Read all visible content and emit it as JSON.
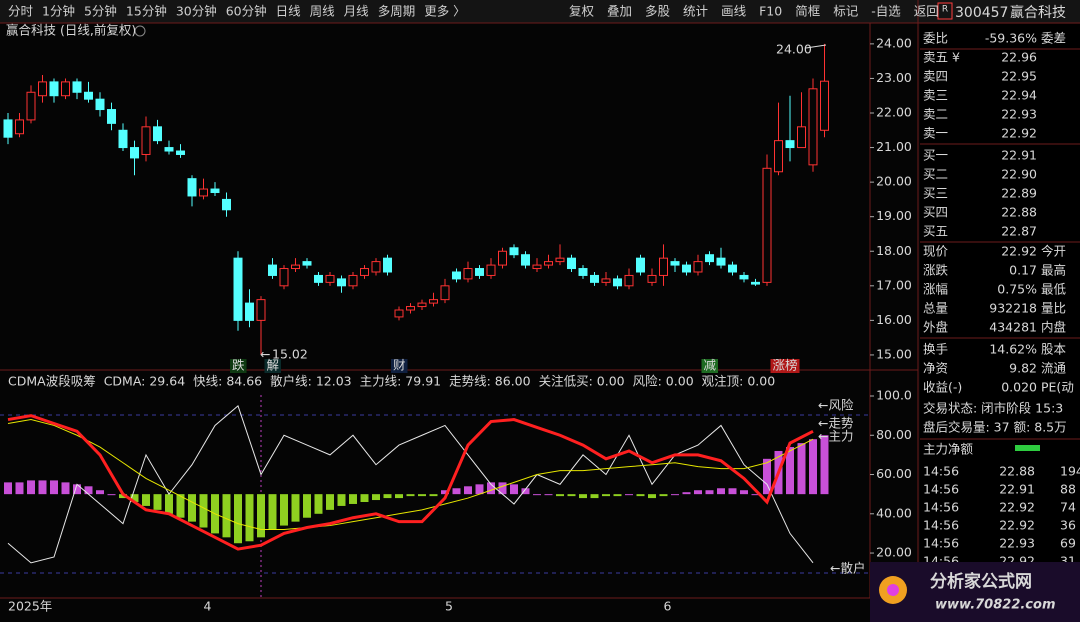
{
  "toolbar": {
    "left": [
      {
        "text": "分时"
      },
      {
        "text": "1分钟"
      },
      {
        "text": "5分钟"
      },
      {
        "text": "15分钟"
      },
      {
        "text": "30分钟"
      },
      {
        "text": "60分钟"
      },
      {
        "text": "日线",
        "active": true
      },
      {
        "text": "周线"
      },
      {
        "text": "月线"
      },
      {
        "text": "多周期"
      },
      {
        "text": "更多 〉"
      }
    ],
    "right": [
      {
        "text": "复权"
      },
      {
        "text": "叠加"
      },
      {
        "text": "多股"
      },
      {
        "text": "统计"
      },
      {
        "text": "画线"
      },
      {
        "text": "F10"
      },
      {
        "text": "简框"
      },
      {
        "text": "标记"
      },
      {
        "text": "-自选"
      },
      {
        "text": "返回"
      }
    ]
  },
  "chart_data": [
    {
      "type": "candlestick",
      "title": "赢合科技 (日线,前复权)",
      "up_color": "#ff3232",
      "down_color": "#54ffff",
      "ylim": [
        14.68,
        24.17
      ],
      "yticks": [
        {
          "value": 15,
          "label": "15.00"
        },
        {
          "value": 16,
          "label": "16.00"
        },
        {
          "value": 17,
          "label": "17.00"
        },
        {
          "value": 18,
          "label": "18.00"
        },
        {
          "value": 19,
          "label": "19.00"
        },
        {
          "value": 20,
          "label": "20.00"
        },
        {
          "value": 21,
          "label": "21.00"
        },
        {
          "value": 22,
          "label": "22.00"
        },
        {
          "value": 23,
          "label": "23.00"
        },
        {
          "value": 24,
          "label": "24.00"
        }
      ],
      "categories": [
        "2025年",
        null,
        null,
        null,
        null,
        null,
        null,
        null,
        null,
        null,
        null,
        null,
        null,
        null,
        null,
        null,
        null,
        "4",
        null,
        null,
        null,
        null,
        null,
        null,
        null,
        null,
        null,
        null,
        null,
        null,
        null,
        null,
        null,
        null,
        null,
        null,
        null,
        null,
        "5",
        null,
        null,
        null,
        null,
        null,
        null,
        null,
        null,
        null,
        null,
        null,
        null,
        null,
        null,
        null,
        null,
        null,
        null,
        "6",
        null,
        null,
        null,
        null,
        null,
        null,
        null,
        null,
        null,
        null,
        null,
        null,
        null,
        null
      ],
      "candles": [
        [
          21.8,
          22.0,
          21.1,
          21.3
        ],
        [
          21.4,
          22.0,
          21.3,
          21.8
        ],
        [
          21.8,
          22.8,
          21.7,
          22.6
        ],
        [
          22.5,
          23.1,
          22.3,
          22.9
        ],
        [
          22.9,
          23.0,
          22.3,
          22.5
        ],
        [
          22.5,
          23.0,
          22.4,
          22.9
        ],
        [
          22.9,
          23.0,
          22.4,
          22.6
        ],
        [
          22.6,
          22.9,
          22.3,
          22.4
        ],
        [
          22.4,
          22.6,
          21.9,
          22.1
        ],
        [
          22.1,
          22.3,
          21.5,
          21.7
        ],
        [
          21.5,
          21.7,
          20.9,
          21.0
        ],
        [
          21.0,
          21.2,
          20.2,
          20.7
        ],
        [
          20.8,
          21.9,
          20.6,
          21.6
        ],
        [
          21.6,
          21.8,
          21.1,
          21.2
        ],
        [
          21.0,
          21.2,
          20.8,
          20.9
        ],
        [
          20.9,
          21.1,
          20.7,
          20.8
        ],
        [
          20.1,
          20.2,
          19.3,
          19.6
        ],
        [
          19.6,
          20.1,
          19.5,
          19.8
        ],
        [
          19.8,
          20.0,
          19.6,
          19.7
        ],
        [
          19.5,
          19.7,
          19.0,
          19.2
        ],
        [
          17.8,
          18.0,
          15.7,
          16.0
        ],
        [
          16.5,
          16.9,
          15.8,
          16.0
        ],
        [
          16.0,
          16.7,
          15.02,
          16.6
        ],
        [
          17.6,
          17.8,
          17.2,
          17.3
        ],
        [
          17.0,
          17.6,
          16.9,
          17.5
        ],
        [
          17.5,
          17.8,
          17.4,
          17.6
        ],
        [
          17.7,
          17.8,
          17.5,
          17.6
        ],
        [
          17.3,
          17.4,
          17.0,
          17.1
        ],
        [
          17.1,
          17.4,
          17.0,
          17.3
        ],
        [
          17.2,
          17.3,
          16.8,
          17.0
        ],
        [
          17.0,
          17.4,
          16.9,
          17.3
        ],
        [
          17.3,
          17.6,
          17.2,
          17.5
        ],
        [
          17.4,
          17.8,
          17.3,
          17.7
        ],
        [
          17.8,
          17.9,
          17.3,
          17.4
        ],
        [
          16.1,
          16.4,
          16.0,
          16.3
        ],
        [
          16.3,
          16.5,
          16.2,
          16.4
        ],
        [
          16.4,
          16.6,
          16.3,
          16.5
        ],
        [
          16.5,
          16.8,
          16.4,
          16.6
        ],
        [
          16.6,
          17.2,
          16.5,
          17.0
        ],
        [
          17.4,
          17.5,
          17.1,
          17.2
        ],
        [
          17.2,
          17.7,
          17.1,
          17.5
        ],
        [
          17.5,
          17.6,
          17.2,
          17.3
        ],
        [
          17.3,
          17.8,
          17.2,
          17.6
        ],
        [
          17.6,
          18.1,
          17.5,
          18.0
        ],
        [
          18.1,
          18.2,
          17.8,
          17.9
        ],
        [
          17.9,
          18.0,
          17.5,
          17.6
        ],
        [
          17.5,
          17.8,
          17.4,
          17.6
        ],
        [
          17.6,
          17.9,
          17.5,
          17.7
        ],
        [
          17.7,
          18.2,
          17.6,
          17.8
        ],
        [
          17.8,
          17.9,
          17.4,
          17.5
        ],
        [
          17.5,
          17.6,
          17.2,
          17.3
        ],
        [
          17.3,
          17.4,
          17.0,
          17.1
        ],
        [
          17.1,
          17.4,
          17.0,
          17.2
        ],
        [
          17.2,
          17.3,
          16.9,
          17.0
        ],
        [
          17.0,
          17.5,
          16.9,
          17.3
        ],
        [
          17.8,
          17.9,
          17.3,
          17.4
        ],
        [
          17.1,
          17.5,
          17.0,
          17.3
        ],
        [
          17.3,
          18.2,
          17.0,
          17.8
        ],
        [
          17.7,
          17.8,
          17.4,
          17.6
        ],
        [
          17.6,
          17.7,
          17.3,
          17.4
        ],
        [
          17.4,
          17.9,
          17.3,
          17.7
        ],
        [
          17.9,
          18.0,
          17.6,
          17.7
        ],
        [
          17.8,
          18.1,
          17.5,
          17.6
        ],
        [
          17.6,
          17.7,
          17.3,
          17.4
        ],
        [
          17.3,
          17.4,
          17.1,
          17.2
        ],
        [
          17.1,
          17.2,
          17.0,
          17.05
        ],
        [
          17.1,
          20.8,
          17.0,
          20.4
        ],
        [
          20.3,
          22.3,
          20.2,
          21.2
        ],
        [
          21.2,
          22.5,
          20.6,
          21.0
        ],
        [
          21.0,
          22.6,
          21.0,
          21.6
        ],
        [
          20.5,
          23.0,
          20.3,
          22.7
        ],
        [
          21.5,
          24.0,
          21.3,
          22.92
        ]
      ],
      "high_label": "24.00",
      "low_label": "15.02",
      "events": [
        {
          "text": "跌",
          "x": 20,
          "color": "#2ecc40",
          "bg": "#0f3a12"
        },
        {
          "text": "解",
          "x": 23,
          "color": "#54ffff",
          "bg": "#0a2a2a"
        },
        {
          "text": "财",
          "x": 34,
          "color": "#9fd0ff",
          "bg": "#102040"
        },
        {
          "text": "减",
          "x": 61,
          "color": "#e0ffe0",
          "bg": "#1e6b22"
        },
        {
          "text": "涨榜",
          "x": 67,
          "color": "#fff",
          "bg": "#b01818"
        }
      ]
    },
    {
      "type": "bar_line",
      "title": "CDMA波段吸筹",
      "base": 50,
      "ylim": [
        -2.9,
        110.7
      ],
      "yticks": [
        {
          "value": 20,
          "label": "20.00"
        },
        {
          "value": 40,
          "label": "40.00"
        },
        {
          "value": 60,
          "label": "60.00"
        },
        {
          "value": 80,
          "label": "80.00"
        },
        {
          "value": 100,
          "label": "100.0"
        }
      ],
      "legend": [
        {
          "text": "CDMA: 29.64",
          "color": "#ffffff"
        },
        {
          "text": "快线: 84.66",
          "color": "#555555"
        },
        {
          "text": "散户线: 12.03",
          "color": "#ffffff"
        },
        {
          "text": "主力线: 79.91",
          "color": "#ffd700"
        },
        {
          "text": "走势线: 86.00",
          "color": "#ff3030"
        },
        {
          "text": "关注低买: 0.00",
          "color": "#e040e0"
        },
        {
          "text": "风险: 0.00",
          "color": "#ffffff"
        },
        {
          "text": "观注顶: 0.00",
          "color": "#30c030"
        }
      ],
      "bars": {
        "up_color": "#c850d8",
        "down_color": "#8fd020",
        "values": [
          56,
          56,
          57,
          57,
          57,
          56,
          55,
          54,
          52,
          50,
          48,
          46,
          44,
          42,
          40,
          38,
          36,
          33,
          30,
          28,
          25,
          26,
          28,
          32,
          34,
          36,
          38,
          40,
          42,
          44,
          45,
          46,
          47,
          48,
          48,
          49,
          49,
          49,
          52,
          53,
          54,
          55,
          56,
          56,
          55,
          53,
          50,
          50,
          49,
          49,
          48,
          48,
          49,
          49,
          50,
          49,
          48,
          49,
          50,
          51,
          52,
          52,
          53,
          53,
          52,
          50,
          68,
          72,
          74,
          76,
          78,
          80
        ]
      },
      "series": [
        {
          "name": "散户",
          "color": "#e8e8e8",
          "width": 1,
          "values": [
            25,
            15,
            18,
            55,
            45,
            35,
            70,
            50,
            65,
            85,
            95,
            60,
            80,
            75,
            70,
            80,
            65,
            75,
            80,
            85,
            70,
            55,
            45,
            60,
            55,
            70,
            60,
            80,
            55,
            70,
            75,
            85,
            65,
            55,
            30,
            15
          ]
        },
        {
          "name": "主力",
          "color": "#e6e600",
          "width": 1,
          "values": [
            86,
            88,
            85,
            80,
            74,
            66,
            58,
            52,
            46,
            40,
            35,
            32,
            32,
            33,
            34,
            36,
            38,
            40,
            42,
            45,
            48,
            52,
            56,
            60,
            62,
            62,
            63,
            64,
            65,
            66,
            64,
            63,
            63,
            66,
            72,
            78
          ]
        },
        {
          "name": "走势",
          "color": "#ff2020",
          "width": 3,
          "values": [
            88,
            90,
            86,
            82,
            70,
            50,
            42,
            40,
            34,
            28,
            22,
            24,
            30,
            33,
            35,
            38,
            40,
            36,
            36,
            48,
            75,
            87,
            88,
            84,
            80,
            75,
            68,
            72,
            66,
            70,
            70,
            67,
            58,
            46,
            76,
            82
          ]
        }
      ],
      "line_labels": [
        {
          "text": "←风险",
          "color": "#e6e600"
        },
        {
          "text": "←走势",
          "color": "#ff3030"
        },
        {
          "text": "←主力",
          "color": "#e6e600"
        },
        {
          "text": "←散户",
          "color": "#ffffff"
        }
      ]
    }
  ],
  "quote": {
    "badge": "R",
    "code": "300457",
    "name": "赢合科技",
    "rows": [
      {
        "label": "委比",
        "value": "-59.36%",
        "extra": "委差",
        "color": "#2ecc40"
      },
      {
        "label": "卖五 ¥",
        "value": "22.96",
        "color": "#ff3c3c"
      },
      {
        "label": "卖四",
        "value": "22.95",
        "color": "#ff3c3c"
      },
      {
        "label": "卖三",
        "value": "22.94",
        "color": "#ff3c3c"
      },
      {
        "label": "卖二",
        "value": "22.93",
        "color": "#ff3c3c"
      },
      {
        "label": "卖一",
        "value": "22.92",
        "color": "#ff3c3c"
      },
      {
        "label": "买一",
        "value": "22.91",
        "color": "#ff3c3c"
      },
      {
        "label": "买二",
        "value": "22.90",
        "color": "#ff3c3c"
      },
      {
        "label": "买三",
        "value": "22.89",
        "color": "#ff3c3c"
      },
      {
        "label": "买四",
        "value": "22.88",
        "color": "#ff3c3c"
      },
      {
        "label": "买五",
        "value": "22.87",
        "color": "#ff3c3c"
      },
      {
        "label": "现价",
        "value": "22.92",
        "extra": "今开",
        "color": "#ff3c3c"
      },
      {
        "label": "涨跌",
        "value": "0.17",
        "extra": "最高",
        "color": "#ff3c3c"
      },
      {
        "label": "涨幅",
        "value": "0.75%",
        "extra": "最低",
        "color": "#ff3c3c"
      },
      {
        "label": "总量",
        "value": "932218",
        "extra": "量比",
        "color": "#ffd700"
      },
      {
        "label": "外盘",
        "value": "434281",
        "extra": "内盘",
        "color": "#ff3c3c"
      },
      {
        "label": "换手",
        "value": "14.62%",
        "extra": "股本",
        "color": "#e0e0e0"
      },
      {
        "label": "净资",
        "value": "9.82",
        "extra": "流通",
        "color": "#e0e0e0"
      },
      {
        "label": "收益(-)",
        "value": "0.020",
        "extra": "PE(动",
        "color": "#e0e0e0"
      }
    ],
    "status": [
      "交易状态: 闭市阶段 15:3",
      "盘后交易量: 37  额: 8.5万"
    ],
    "net_label": "主力净额",
    "trades": [
      [
        "14:56",
        "22.88",
        "194"
      ],
      [
        "14:56",
        "22.91",
        "88"
      ],
      [
        "14:56",
        "22.92",
        "74"
      ],
      [
        "14:56",
        "22.92",
        "36"
      ],
      [
        "14:56",
        "22.93",
        "69"
      ],
      [
        "14:56",
        "22.92",
        "31"
      ]
    ]
  },
  "watermark": {
    "title": "分析家公式网",
    "url": "www.70822.com"
  }
}
